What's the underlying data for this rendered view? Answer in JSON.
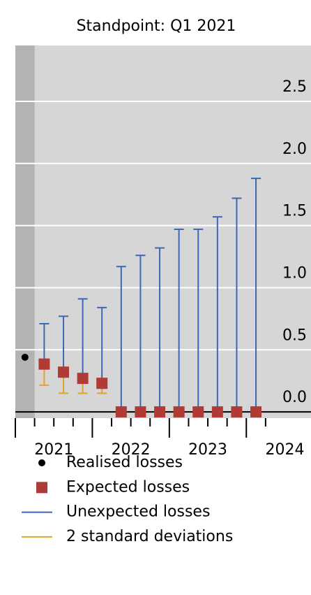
{
  "chart_data": {
    "type": "errorbar",
    "title": "Standpoint: Q1 2021",
    "x": [
      2021.375,
      2021.625,
      2021.875,
      2022.125,
      2022.375,
      2022.625,
      2022.875,
      2023.125,
      2023.375,
      2023.625,
      2023.875,
      2024.125
    ],
    "series": [
      {
        "name": "Realised losses",
        "color": "#000000",
        "marker": "dot",
        "x": [
          2021.125
        ],
        "values": [
          0.44
        ]
      },
      {
        "name": "Expected losses",
        "color": "#b03a35",
        "marker": "square",
        "values": [
          0.385,
          0.32,
          0.27,
          0.23,
          0,
          0,
          0,
          0,
          0,
          0,
          0,
          0
        ]
      },
      {
        "name": "Unexpected losses",
        "color": "#3f66b5",
        "marker": "upper-bar",
        "values": [
          0.71,
          0.77,
          0.91,
          0.84,
          1.17,
          1.26,
          1.32,
          1.47,
          1.47,
          1.57,
          1.72,
          1.88
        ]
      },
      {
        "name": "2 standard deviations",
        "color": "#e3a32b",
        "marker": "lower-bar",
        "values": [
          0.215,
          0.15,
          0.15,
          0.15,
          null,
          null,
          null,
          null,
          null,
          null,
          null,
          null
        ]
      }
    ],
    "xlim": [
      2021,
      2024.84
    ],
    "xticks": [
      {
        "value": 2021.5,
        "label": "2021"
      },
      {
        "value": 2022.5,
        "label": "2022"
      },
      {
        "value": 2023.5,
        "label": "2023"
      },
      {
        "value": 2024.5,
        "label": "2024"
      }
    ],
    "xticks_major": [
      2021,
      2022,
      2023,
      2024
    ],
    "xticks_minor": [
      2021.25,
      2021.5,
      2021.75,
      2022.25,
      2022.5,
      2022.75,
      2023.25,
      2023.5,
      2023.75,
      2024.25
    ],
    "shaded_xrange": [
      2021,
      2021.25
    ],
    "ylim": [
      -0.05,
      2.95
    ],
    "yticks": [
      {
        "value": 0,
        "label": "0.0"
      },
      {
        "value": 0.5,
        "label": "0.5"
      },
      {
        "value": 1,
        "label": "1.0"
      },
      {
        "value": 1.5,
        "label": "1.5"
      },
      {
        "value": 2,
        "label": "2.0"
      },
      {
        "value": 2.5,
        "label": "2.5"
      }
    ],
    "grid": true
  }
}
